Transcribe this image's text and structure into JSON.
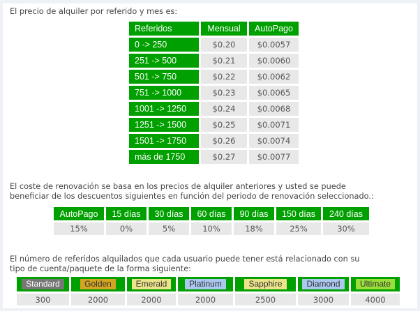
{
  "colors": {
    "header_green": "#00a000",
    "cell_gray": "#e8e8e8"
  },
  "section1": {
    "intro": "El precio de alquiler por referido y mes es:",
    "headers": [
      "Referidos",
      "Mensual",
      "AutoPago"
    ],
    "rows": [
      [
        "0 -> 250",
        "$0.20",
        "$0.0057"
      ],
      [
        "251 -> 500",
        "$0.21",
        "$0.0060"
      ],
      [
        "501 -> 750",
        "$0.22",
        "$0.0062"
      ],
      [
        "751 -> 1000",
        "$0.23",
        "$0.0065"
      ],
      [
        "1001 -> 1250",
        "$0.24",
        "$0.0068"
      ],
      [
        "1251 -> 1500",
        "$0.25",
        "$0.0071"
      ],
      [
        "1501 -> 1750",
        "$0.26",
        "$0.0074"
      ],
      [
        "más de 1750",
        "$0.27",
        "$0.0077"
      ]
    ]
  },
  "section2": {
    "intro_line1": "El coste de renovación se basa en los precios de alquiler anteriores y usted se puede",
    "intro_line2": "beneficiar de los descuentos siguientes en función del periodo de renovación seleccionado.:",
    "headers": [
      "AutoPago",
      "15 días",
      "30 días",
      "60 días",
      "90 días",
      "150 días",
      "240 días"
    ],
    "values": [
      "15%",
      "0%",
      "5%",
      "10%",
      "18%",
      "25%",
      "30%"
    ]
  },
  "section3": {
    "intro_line1": "El número de referidos alquilados que cada usuario puede tener está relacionado con su",
    "intro_line2": "tipo de cuenta/paquete de la forma siguiente:",
    "accounts": [
      {
        "name": "Standard",
        "value": "300",
        "color": "#777777",
        "text_color": "#ffffff"
      },
      {
        "name": "Golden",
        "value": "2000",
        "color": "#d4a520",
        "text_color": "#333333"
      },
      {
        "name": "Emerald",
        "value": "2000",
        "color": "#ece48a",
        "text_color": "#333333"
      },
      {
        "name": "Platinum",
        "value": "2000",
        "color": "#aac8f0",
        "text_color": "#333333"
      },
      {
        "name": "Sapphire",
        "value": "2500",
        "color": "#ece48a",
        "text_color": "#333333"
      },
      {
        "name": "Diamond",
        "value": "3000",
        "color": "#aac8f0",
        "text_color": "#333333"
      },
      {
        "name": "Ultimate",
        "value": "4000",
        "color": "#9ade3a",
        "text_color": "#333333"
      }
    ]
  }
}
